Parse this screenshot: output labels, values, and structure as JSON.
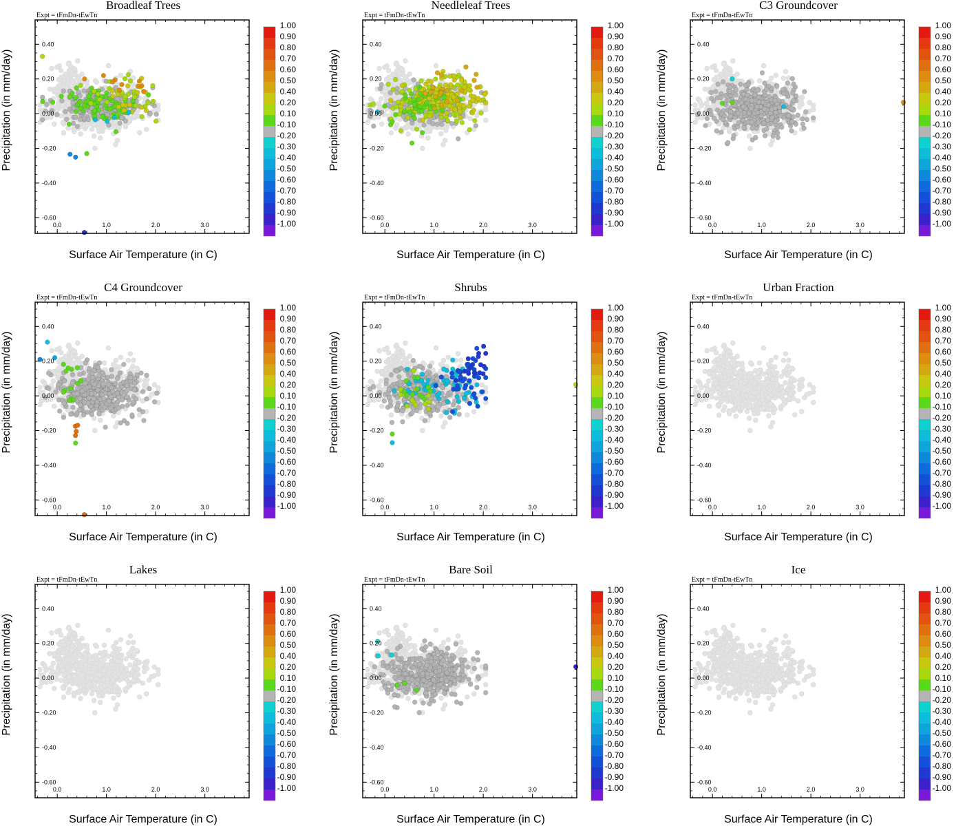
{
  "figure": {
    "expt_label": "Expt = tFmDn-tEwTn",
    "xlabel": "Surface Air Temperature (in C)",
    "ylabel": "Precipitation (in mm/day)"
  },
  "chart_data": {
    "type": "scatter",
    "xlim": [
      -0.45,
      3.9
    ],
    "ylim": [
      -0.69,
      0.54
    ],
    "x_ticks": [
      {
        "v": 0.0,
        "label": "0.0"
      },
      {
        "v": 1.0,
        "label": "1.0"
      },
      {
        "v": 2.0,
        "label": "2.0"
      },
      {
        "v": 3.0,
        "label": "3.0"
      }
    ],
    "y_ticks": [
      {
        "v": 0.4,
        "label": "0.40"
      },
      {
        "v": 0.2,
        "label": "0.20"
      },
      {
        "v": 0.0,
        "label": "0.00"
      },
      {
        "v": -0.2,
        "label": "-0.20"
      },
      {
        "v": -0.4,
        "label": "-0.40"
      },
      {
        "v": -0.6,
        "label": "-0.60"
      }
    ],
    "colorbar": {
      "labels": [
        "1.00",
        "0.90",
        "0.80",
        "0.70",
        "0.60",
        "0.50",
        "0.40",
        "0.20",
        "0.10",
        "-0.10",
        "-0.20",
        "-0.30",
        "-0.40",
        "-0.50",
        "-0.60",
        "-0.70",
        "-0.80",
        "-0.90",
        "-1.00"
      ],
      "colors": [
        "#e31a10",
        "#e43a10",
        "#e05410",
        "#de7010",
        "#dc8c10",
        "#d4a810",
        "#c8c810",
        "#a8d810",
        "#5cd81c",
        "#b4b4b4",
        "#10d0d0",
        "#10bcdc",
        "#10a4dc",
        "#1088dc",
        "#106cdc",
        "#1450d8",
        "#2038d0",
        "#3c20cc",
        "#7818d8"
      ]
    },
    "panels": [
      {
        "title": "Broadleaf Trees",
        "clusters": [
          {
            "color": "#b4b4b4",
            "cx": 0.9,
            "cy": 0.05,
            "sx": 0.45,
            "sy": 0.05,
            "n": 220,
            "seed": 11
          },
          {
            "color": "#5cd81c",
            "cx": 0.9,
            "cy": 0.05,
            "sx": 0.45,
            "sy": 0.05,
            "n": 70,
            "seed": 12
          },
          {
            "color": "#a8d810",
            "cx": 1.4,
            "cy": 0.1,
            "sx": 0.4,
            "sy": 0.06,
            "n": 30,
            "seed": 13
          },
          {
            "color": "#c8c810",
            "cx": 1.6,
            "cy": 0.1,
            "sx": 0.3,
            "sy": 0.06,
            "n": 16,
            "seed": 14
          },
          {
            "color": "#dc8c10",
            "cx": 1.5,
            "cy": 0.18,
            "sx": 0.3,
            "sy": 0.04,
            "n": 10,
            "seed": 15
          },
          {
            "color": "#10bcdc",
            "cx": 1.2,
            "cy": -0.02,
            "sx": 0.2,
            "sy": 0.03,
            "n": 4,
            "seed": 16
          },
          {
            "color": "#1088dc",
            "cx": 0.3,
            "cy": -0.24,
            "sx": 0.1,
            "sy": 0.03,
            "n": 2,
            "seed": 17
          }
        ],
        "extra": [
          {
            "x": 0.55,
            "y": -0.685,
            "color": "#2038d0"
          },
          {
            "x": -0.3,
            "y": 0.33,
            "color": "#a8d810"
          },
          {
            "x": 0.6,
            "y": -0.23,
            "color": "#5cd81c"
          }
        ]
      },
      {
        "title": "Needleleaf Trees",
        "clusters": [
          {
            "color": "#b4b4b4",
            "cx": 0.85,
            "cy": 0.04,
            "sx": 0.45,
            "sy": 0.06,
            "n": 180,
            "seed": 21
          },
          {
            "color": "#a8d810",
            "cx": 1.0,
            "cy": 0.07,
            "sx": 0.45,
            "sy": 0.06,
            "n": 130,
            "seed": 22
          },
          {
            "color": "#c8c810",
            "cx": 1.2,
            "cy": 0.09,
            "sx": 0.4,
            "sy": 0.05,
            "n": 110,
            "seed": 23
          },
          {
            "color": "#5cd81c",
            "cx": 0.6,
            "cy": 0.03,
            "sx": 0.3,
            "sy": 0.06,
            "n": 40,
            "seed": 24
          },
          {
            "color": "#d4a810",
            "cx": 1.3,
            "cy": 0.13,
            "sx": 0.3,
            "sy": 0.05,
            "n": 20,
            "seed": 25
          }
        ],
        "extra": [
          {
            "x": -0.15,
            "y": 0.01,
            "color": "#10bcdc"
          },
          {
            "x": 0.55,
            "y": -0.17,
            "color": "#5cd81c"
          }
        ]
      },
      {
        "title": "C3 Groundcover",
        "clusters": [
          {
            "color": "#b4b4b4",
            "cx": 0.9,
            "cy": 0.03,
            "sx": 0.45,
            "sy": 0.07,
            "n": 420,
            "seed": 31
          }
        ],
        "extra": [
          {
            "x": 0.2,
            "y": 0.06,
            "color": "#5cd81c"
          },
          {
            "x": 0.4,
            "y": 0.065,
            "color": "#5cd81c"
          },
          {
            "x": 0.4,
            "y": 0.2,
            "color": "#10d0d0"
          },
          {
            "x": 1.45,
            "y": 0.04,
            "color": "#10bcdc"
          },
          {
            "x": 3.88,
            "y": 0.065,
            "color": "#dc8c10"
          }
        ]
      },
      {
        "title": "C4 Groundcover",
        "clusters": [
          {
            "color": "#b4b4b4",
            "cx": 0.85,
            "cy": 0.02,
            "sx": 0.45,
            "sy": 0.07,
            "n": 380,
            "seed": 41
          },
          {
            "color": "#5cd81c",
            "cx": 0.2,
            "cy": 0.05,
            "sx": 0.15,
            "sy": 0.12,
            "n": 14,
            "seed": 42
          },
          {
            "color": "#de7010",
            "cx": 0.35,
            "cy": -0.2,
            "sx": 0.05,
            "sy": 0.05,
            "n": 4,
            "seed": 43
          }
        ],
        "extra": [
          {
            "x": -0.35,
            "y": 0.21,
            "color": "#1088dc"
          },
          {
            "x": -0.2,
            "y": 0.31,
            "color": "#10bcdc"
          },
          {
            "x": -0.05,
            "y": 0.22,
            "color": "#10a4dc"
          },
          {
            "x": 0.55,
            "y": -0.685,
            "color": "#de7010"
          }
        ]
      },
      {
        "title": "Shrubs",
        "clusters": [
          {
            "color": "#b4b4b4",
            "cx": 0.7,
            "cy": 0.02,
            "sx": 0.4,
            "sy": 0.07,
            "n": 260,
            "seed": 51
          },
          {
            "color": "#10bcdc",
            "cx": 1.2,
            "cy": 0.04,
            "sx": 0.4,
            "sy": 0.07,
            "n": 60,
            "seed": 52
          },
          {
            "color": "#1450d8",
            "cx": 1.7,
            "cy": 0.1,
            "sx": 0.25,
            "sy": 0.08,
            "n": 45,
            "seed": 53
          },
          {
            "color": "#2038d0",
            "cx": 1.8,
            "cy": 0.2,
            "sx": 0.2,
            "sy": 0.06,
            "n": 15,
            "seed": 54
          },
          {
            "color": "#a8d810",
            "cx": 0.6,
            "cy": 0.0,
            "sx": 0.25,
            "sy": 0.06,
            "n": 14,
            "seed": 55
          },
          {
            "color": "#5cd81c",
            "cx": 0.6,
            "cy": 0.03,
            "sx": 0.2,
            "sy": 0.05,
            "n": 12,
            "seed": 56
          }
        ],
        "extra": [
          {
            "x": 3.88,
            "y": 0.065,
            "color": "#a8d810"
          },
          {
            "x": 0.15,
            "y": -0.27,
            "color": "#10bcdc"
          },
          {
            "x": 0.15,
            "y": -0.22,
            "color": "#5cd81c"
          }
        ]
      },
      {
        "title": "Urban Fraction",
        "clusters": [],
        "extra": []
      },
      {
        "title": "Lakes",
        "clusters": [],
        "extra": []
      },
      {
        "title": "Bare Soil",
        "clusters": [
          {
            "color": "#b4b4b4",
            "cx": 0.9,
            "cy": 0.03,
            "sx": 0.45,
            "sy": 0.07,
            "n": 400,
            "seed": 81
          },
          {
            "color": "#10d0d0",
            "cx": -0.1,
            "cy": 0.13,
            "sx": 0.1,
            "sy": 0.03,
            "n": 3,
            "seed": 82
          }
        ],
        "extra": [
          {
            "x": 0.25,
            "y": -0.04,
            "color": "#5cd81c"
          },
          {
            "x": 0.4,
            "y": -0.03,
            "color": "#5cd81c"
          },
          {
            "x": 0.65,
            "y": -0.07,
            "color": "#5cd81c"
          },
          {
            "x": 3.88,
            "y": 0.065,
            "color": "#3c20cc"
          }
        ]
      },
      {
        "title": "Ice",
        "clusters": [],
        "extra": []
      }
    ]
  }
}
